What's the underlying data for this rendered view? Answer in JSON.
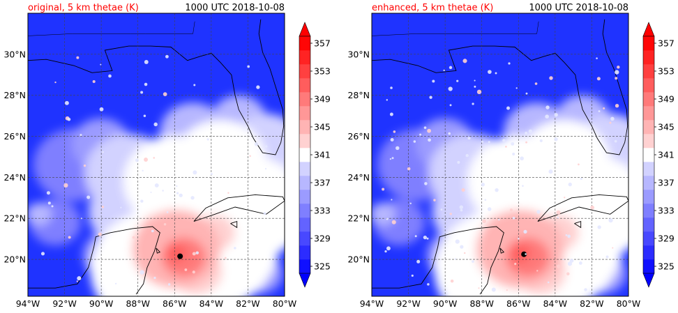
{
  "chart_data": [
    {
      "type": "heatmap",
      "title": "original, 5 km thetae (K)",
      "title_color": "#ff0000",
      "right_title": "1000 UTC 2018-10-08",
      "xlim": [
        -94,
        -80
      ],
      "ylim": [
        18.2,
        32.0
      ],
      "x_tick_values": [
        -94,
        -92,
        -90,
        -88,
        -86,
        -84,
        -82,
        -80
      ],
      "x_ticks": [
        "94°W",
        "92°W",
        "90°W",
        "88°W",
        "86°W",
        "84°W",
        "82°W",
        "80°W"
      ],
      "y_tick_values": [
        20,
        22,
        24,
        26,
        28,
        30
      ],
      "y_ticks": [
        "20°N",
        "22°N",
        "24°N",
        "26°N",
        "28°N",
        "30°N"
      ],
      "storm_center": {
        "lon": -85.7,
        "lat": 20.15
      },
      "grid": true,
      "colorbar": {
        "tick_labels": [
          "325",
          "329",
          "333",
          "337",
          "341",
          "345",
          "349",
          "353",
          "357"
        ],
        "levels": [
          325,
          327,
          329,
          331,
          333,
          335,
          337,
          339,
          341,
          343,
          345,
          347,
          349,
          351,
          353,
          355,
          357,
          359
        ],
        "extend": "both",
        "cmap": "bwr"
      }
    },
    {
      "type": "heatmap",
      "title": "enhanced, 5 km thetae (K)",
      "title_color": "#ff0000",
      "right_title": "1000 UTC 2018-10-08",
      "xlim": [
        -94,
        -80
      ],
      "ylim": [
        18.2,
        32.0
      ],
      "x_tick_values": [
        -94,
        -92,
        -90,
        -88,
        -86,
        -84,
        -82,
        -80
      ],
      "x_ticks": [
        "94°W",
        "92°W",
        "90°W",
        "88°W",
        "86°W",
        "84°W",
        "82°W",
        "80°W"
      ],
      "y_tick_values": [
        20,
        22,
        24,
        26,
        28,
        30
      ],
      "y_ticks": [
        "20°N",
        "22°N",
        "24°N",
        "26°N",
        "28°N",
        "30°N"
      ],
      "storm_center": {
        "lon": -85.7,
        "lat": 20.25
      },
      "grid": true,
      "colorbar": {
        "tick_labels": [
          "325",
          "329",
          "333",
          "337",
          "341",
          "345",
          "349",
          "353",
          "357"
        ],
        "levels": [
          325,
          327,
          329,
          331,
          333,
          335,
          337,
          339,
          341,
          343,
          345,
          347,
          349,
          351,
          353,
          355,
          357,
          359
        ],
        "extend": "both",
        "cmap": "bwr"
      }
    }
  ]
}
